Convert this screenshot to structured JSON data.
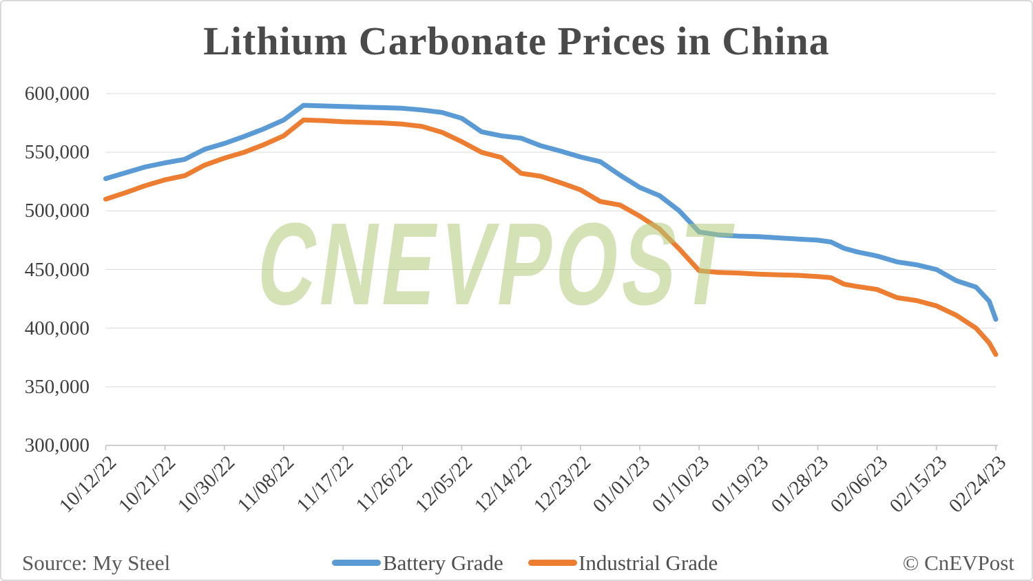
{
  "page": {
    "watermark": "CNEVPOST",
    "source_note": "Source: My Steel",
    "copyright": "© CnEVPost"
  },
  "chart_data": {
    "type": "line",
    "title": "Lithium Carbonate Prices in China",
    "ylabel": "",
    "xlabel": "",
    "ylim": [
      300000,
      600000
    ],
    "y_tick_step": 50000,
    "grid": true,
    "legend_position": "bottom",
    "y_tick_labels": [
      "600,000",
      "550,000",
      "500,000",
      "450,000",
      "400,000",
      "350,000",
      "300,000"
    ],
    "x_tick_labels": [
      "10/12/22",
      "10/21/22",
      "10/30/22",
      "11/08/22",
      "11/17/22",
      "11/26/22",
      "12/05/22",
      "12/14/22",
      "12/23/22",
      "01/01/23",
      "01/10/23",
      "01/19/23",
      "01/28/23",
      "02/06/23",
      "02/15/23",
      "02/24/23"
    ],
    "x": [
      "10/12/22",
      "10/15/22",
      "10/18/22",
      "10/21/22",
      "10/24/22",
      "10/27/22",
      "10/30/22",
      "11/02/22",
      "11/05/22",
      "11/08/22",
      "11/11/22",
      "11/14/22",
      "11/17/22",
      "11/20/22",
      "11/23/22",
      "11/26/22",
      "11/29/22",
      "12/02/22",
      "12/05/22",
      "12/08/22",
      "12/11/22",
      "12/14/22",
      "12/17/22",
      "12/20/22",
      "12/23/22",
      "12/26/22",
      "12/29/22",
      "01/01/23",
      "01/04/23",
      "01/07/23",
      "01/10/23",
      "01/13/23",
      "01/16/23",
      "01/19/23",
      "01/22/23",
      "01/25/23",
      "01/28/23",
      "01/30/23",
      "02/01/23",
      "02/03/23",
      "02/06/23",
      "02/09/23",
      "02/12/23",
      "02/15/23",
      "02/18/23",
      "02/21/23",
      "02/23/23",
      "02/24/23"
    ],
    "series": [
      {
        "name": "Battery Grade",
        "color": "#5B9BD5",
        "values": [
          527500,
          532500,
          537500,
          541000,
          544000,
          552500,
          557500,
          563500,
          570000,
          577500,
          590000,
          589500,
          589000,
          588500,
          588000,
          587500,
          586000,
          584000,
          579000,
          567500,
          564000,
          562000,
          555500,
          551000,
          546000,
          542000,
          530500,
          520000,
          513000,
          500000,
          482000,
          479500,
          478500,
          478000,
          477000,
          476000,
          475000,
          473500,
          468000,
          465000,
          461500,
          456500,
          454000,
          450000,
          440500,
          435000,
          423000,
          407500
        ]
      },
      {
        "name": "Industrial Grade",
        "color": "#ED7D31",
        "values": [
          510000,
          515500,
          521500,
          526500,
          530000,
          539000,
          545000,
          550000,
          556500,
          564000,
          577500,
          577000,
          576000,
          575500,
          575000,
          574000,
          572000,
          567000,
          559000,
          550000,
          545500,
          532000,
          529500,
          524000,
          518000,
          508000,
          505000,
          495500,
          484500,
          467500,
          449000,
          447500,
          447000,
          446000,
          445500,
          445000,
          444000,
          443000,
          437500,
          435500,
          433000,
          426000,
          423500,
          419000,
          411000,
          400000,
          387500,
          377500
        ]
      }
    ]
  }
}
